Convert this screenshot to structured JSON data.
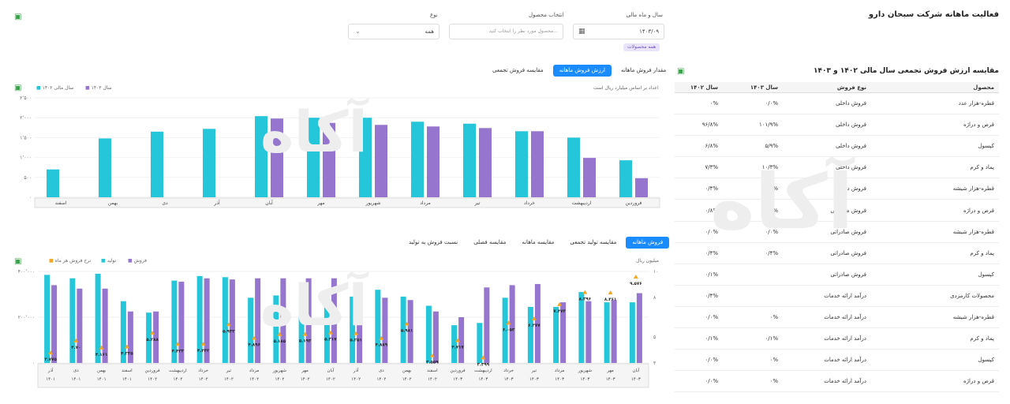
{
  "header": {
    "title": "فعالیت ماهانه شرکت سبحان دارو",
    "filter_date_label": "سال و ماه مالی",
    "filter_date_value": "۱۴۰۳/۰۹",
    "filter_product_label": "انتخاب محصول",
    "filter_product_placeholder": "محصول مورد نظر را انتخاب کنید...",
    "filter_type_label": "نوع",
    "filter_type_value": "همه",
    "chip_all_products": "همه محصولات"
  },
  "table": {
    "title": "مقایسه ارزش فروش تجمعی سال مالی ۱۴۰۲ و ۱۴۰۳",
    "columns": [
      "محصول",
      "نوع فروش",
      "سال ۱۴۰۳",
      "سال ۱۴۰۲"
    ],
    "rows": [
      [
        "قطره-هزار عدد",
        "فروش داخلی",
        "۰/۰%",
        "۰%"
      ],
      [
        "قرص و دراژه",
        "فروش داخلی",
        "۱۰۱/۹%",
        "۹۶/۸%"
      ],
      [
        "کپسول",
        "فروش داخلی",
        "۵/۹%",
        "۶/۸%"
      ],
      [
        "پماد و کرم",
        "فروش داخلی",
        "۱۰/۳%",
        "۷/۳%"
      ],
      [
        "قطره-هزار شیشه",
        "فروش داخلی",
        "۰/۴%",
        "۰/۴%"
      ],
      [
        "قرص و دراژه",
        "فروش صادراتی",
        "۱/۶%",
        "۰/۸%"
      ],
      [
        "قطره-هزار شیشه",
        "فروش صادراتی",
        "۰/۰%",
        "۰/۰%"
      ],
      [
        "پماد و کرم",
        "فروش صادراتی",
        "۰/۴%",
        "۰/۴%"
      ],
      [
        "کپسول",
        "فروش صادراتی",
        "",
        "۰/۱%"
      ],
      [
        "محصولات کارمزدی",
        "درآمد ارائه خدمات",
        "",
        "۰/۴%"
      ],
      [
        "قطره-هزار شیشه",
        "درآمد ارائه خدمات",
        "۰%",
        "۰/۰%"
      ],
      [
        "پماد و کرم",
        "درآمد ارائه خدمات",
        "۰/۱%",
        "۰/۱%"
      ],
      [
        "کپسول",
        "درآمد ارائه خدمات",
        "۰%",
        "۰/۰%"
      ],
      [
        "قرص و دراژه",
        "درآمد ارائه خدمات",
        "۰%",
        "۰/۰%"
      ]
    ]
  },
  "top_chart": {
    "tabs": [
      "مقدار فروش ماهانه",
      "ارزش فروش ماهانه",
      "مقایسه فروش تجمعی"
    ],
    "active_tab": 1,
    "note": "اعداد بر اساس میلیارد ریال است",
    "legend": [
      "سال ۱۴۰۳",
      "سال مالی ۱۴۰۲"
    ]
  },
  "bottom_chart": {
    "tabs": [
      "فروش ماهانه",
      "مقایسه تولید تجمعی",
      "مقایسه ماهانه",
      "مقایسه فصلی",
      "نسبت فروش به تولید"
    ],
    "active_tab": 0,
    "unit": "میلیون ریال",
    "legend": [
      "فروش",
      "تولید",
      "نرخ فروش هر ماه"
    ]
  },
  "chart_data": [
    {
      "type": "bar",
      "categories": [
        "اسفند",
        "بهمن",
        "دی",
        "آذر",
        "آبان",
        "مهر",
        "شهریور",
        "مرداد",
        "تیر",
        "خرداد",
        "اردیبهشت",
        "فروردین"
      ],
      "series": [
        {
          "name": "سال مالی ۱۴۰۲",
          "color": "#26c6da",
          "values": [
            700,
            1480,
            1650,
            1720,
            2040,
            2000,
            2000,
            1900,
            1850,
            1660,
            1500,
            930
          ]
        },
        {
          "name": "سال ۱۴۰۳",
          "color": "#9575cd",
          "values": [
            null,
            null,
            null,
            null,
            1980,
            1870,
            1820,
            1780,
            1740,
            1660,
            990,
            480
          ]
        }
      ],
      "ylim": [
        0,
        2500
      ],
      "yticks": [
        "۰",
        "۵۰۰",
        "۱٬۰۰۰",
        "۱٬۵۰۰",
        "۲٬۰۰۰",
        "۲٬۵۰۰"
      ]
    },
    {
      "type": "bar",
      "categories": [
        "آبان\n۱۴۰۳",
        "مهر\n۱۴۰۳",
        "شهریور\n۱۴۰۳",
        "مرداد\n۱۴۰۳",
        "تیر\n۱۴۰۳",
        "خرداد\n۱۴۰۳",
        "اردیبهشت\n۱۴۰۳",
        "فروردین\n۱۴۰۳",
        "اسفند\n۱۴۰۲",
        "بهمن\n۱۴۰۲",
        "دی\n۱۴۰۲",
        "آذر\n۱۴۰۲",
        "آبان\n۱۴۰۲",
        "مهر\n۱۴۰۲",
        "شهریور\n۱۴۰۲",
        "مرداد\n۱۴۰۲",
        "تیر\n۱۴۰۲",
        "خرداد\n۱۴۰۲",
        "اردیبهشت\n۱۴۰۲",
        "فروردین\n۱۴۰۲",
        "اسفند\n۱۴۰۱",
        "بهمن\n۱۴۰۱",
        "دی\n۱۴۰۱",
        "آذر\n۱۴۰۱"
      ],
      "series": [
        {
          "name": "فروش",
          "color": "#9575cd",
          "values": [
            305000,
            275000,
            270000,
            265000,
            345000,
            340000,
            330000,
            200000,
            225000,
            275000,
            285000,
            280000,
            370000,
            370000,
            370000,
            370000,
            365000,
            370000,
            355000,
            225000,
            225000,
            325000,
            325000,
            340000
          ]
        },
        {
          "name": "تولید",
          "color": "#26c6da",
          "values": [
            265000,
            265000,
            310000,
            245000,
            245000,
            285000,
            175000,
            165000,
            250000,
            290000,
            320000,
            290000,
            290000,
            290000,
            295000,
            285000,
            375000,
            380000,
            360000,
            220000,
            270000,
            390000,
            370000,
            385000
          ]
        },
        {
          "name": "نرخ فروش هر ماه",
          "color": "#f5a623",
          "values": [
            9.576,
            8.361,
            8.396,
            7.473,
            6.377,
            6.053,
            3.399,
            4.717,
            3.559,
            5.981,
            4.889,
            5.251,
            5.317,
            5.193,
            5.185,
            4.896,
            5.932,
            4.442,
            4.433,
            5.288,
            4.235,
            4.161,
            4.7,
            3.775
          ]
        }
      ],
      "ylim": [
        0,
        400000
      ],
      "y2lim": [
        3,
        10
      ],
      "yticks": [
        "۰",
        "۲۰۰٬۰۰۰",
        "۴۰۰٬۰۰۰",
        "۶۰۰٬۰۰۰"
      ],
      "y2ticks": [
        "۳",
        "۵",
        "۸",
        "۱۰"
      ],
      "labels": [
        "۹.۵۷۶",
        "۸.۳۶۱",
        "۸.۳۹۶",
        "۷.۴۷۳",
        "۶.۳۷۷",
        "۶.۰۵۳",
        "۳.۳۹۹",
        "۴.۷۱۷",
        "۳.۵۵۹",
        "۵.۹۸۱",
        "۴.۸۸۹",
        "۵.۲۵۱",
        "۵.۳۱۷",
        "۵.۱۹۳",
        "۵.۱۸۵",
        "۴.۸۹۶",
        "۵.۹۳۲",
        "۴.۴۴۲",
        "۴.۴۳۳",
        "۵.۲۸۸",
        "۴.۲۳۵",
        "۴.۱۶۱",
        "۴.۷۰",
        "۳.۷۷۵"
      ]
    }
  ]
}
